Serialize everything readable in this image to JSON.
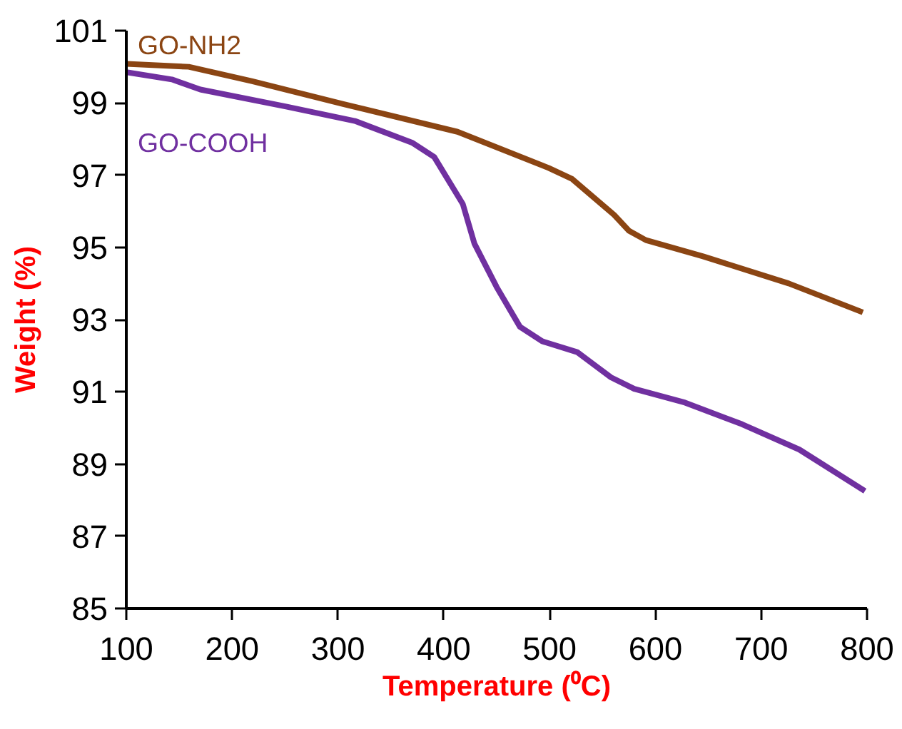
{
  "chart_data": {
    "type": "line",
    "xlabel": "Temperature (⁰C)",
    "ylabel": "Weight (%)",
    "xlim": [
      100,
      800
    ],
    "ylim": [
      85,
      101
    ],
    "xticks": [
      100,
      200,
      300,
      400,
      500,
      600,
      700,
      800
    ],
    "yticks": [
      85,
      87,
      89,
      91,
      93,
      95,
      97,
      99,
      101
    ],
    "grid": false,
    "legend": false,
    "marker": "none",
    "line_style": "solid",
    "series": [
      {
        "name": "GO-NH2",
        "color": "#8b4513",
        "x": [
          100,
          159,
          219,
          305,
          413,
          499,
          521,
          561,
          575,
          591,
          645,
          726,
          796
        ],
        "values": [
          100.08,
          100.0,
          99.6,
          98.97,
          98.2,
          97.2,
          96.9,
          95.9,
          95.46,
          95.2,
          94.75,
          94.0,
          93.2
        ]
      },
      {
        "name": "GO-COOH",
        "color": "#7030a0",
        "x": [
          100,
          143,
          170,
          251,
          316,
          370,
          391,
          418,
          429,
          450,
          472,
          493,
          526,
          558,
          580,
          628,
          682,
          736,
          798
        ],
        "values": [
          99.85,
          99.65,
          99.37,
          98.9,
          98.5,
          97.9,
          97.5,
          96.2,
          95.1,
          93.9,
          92.8,
          92.4,
          92.1,
          91.4,
          91.08,
          90.7,
          90.1,
          89.4,
          88.25
        ]
      }
    ]
  }
}
